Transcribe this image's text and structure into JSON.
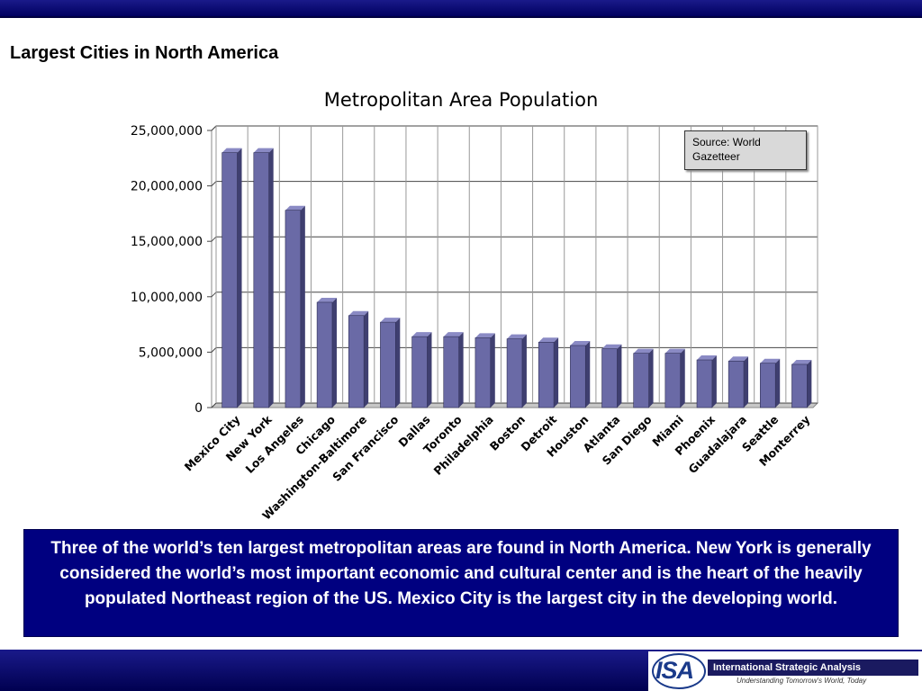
{
  "slide": {
    "title": "Largest Cities in North America",
    "caption": "Three of the world’s ten largest metropolitan areas are found in North America.  New York is generally considered the world’s most important economic and cultural center and is the heart of the heavily populated Northeast region of the US.  Mexico City is the largest city in the developing world."
  },
  "source_note": "Source: World Gazetteer",
  "logo": {
    "mark": "ISA",
    "name": "International Strategic Analysis",
    "tagline": "Understanding Tomorrow's World, Today"
  },
  "colors": {
    "bar": "#6a6aa6",
    "bar_dark": "#3f3f70",
    "bar_top": "#8a8ac4",
    "plot_bg": "#ffffff",
    "banner": "#000080"
  },
  "chart_data": {
    "type": "bar",
    "title": "Metropolitan Area Population",
    "categories": [
      "Mexico City",
      "New York",
      "Los Angeles",
      "Chicago",
      "Washington-Baltimore",
      "San Francisco",
      "Dallas",
      "Toronto",
      "Philadelphia",
      "Boston",
      "Detroit",
      "Houston",
      "Atlanta",
      "San Diego",
      "Miami",
      "Phoenix",
      "Guadalajara",
      "Seattle",
      "Monterrey"
    ],
    "values": [
      23000000,
      23000000,
      17800000,
      9500000,
      8300000,
      7700000,
      6400000,
      6400000,
      6300000,
      6200000,
      5900000,
      5600000,
      5300000,
      4900000,
      4900000,
      4300000,
      4200000,
      4000000,
      3900000
    ],
    "yticks": [
      "0",
      "5,000,000",
      "10,000,000",
      "15,000,000",
      "20,000,000",
      "25,000,000"
    ],
    "ylim": [
      0,
      25000000
    ],
    "grid": true,
    "legend": "none"
  }
}
